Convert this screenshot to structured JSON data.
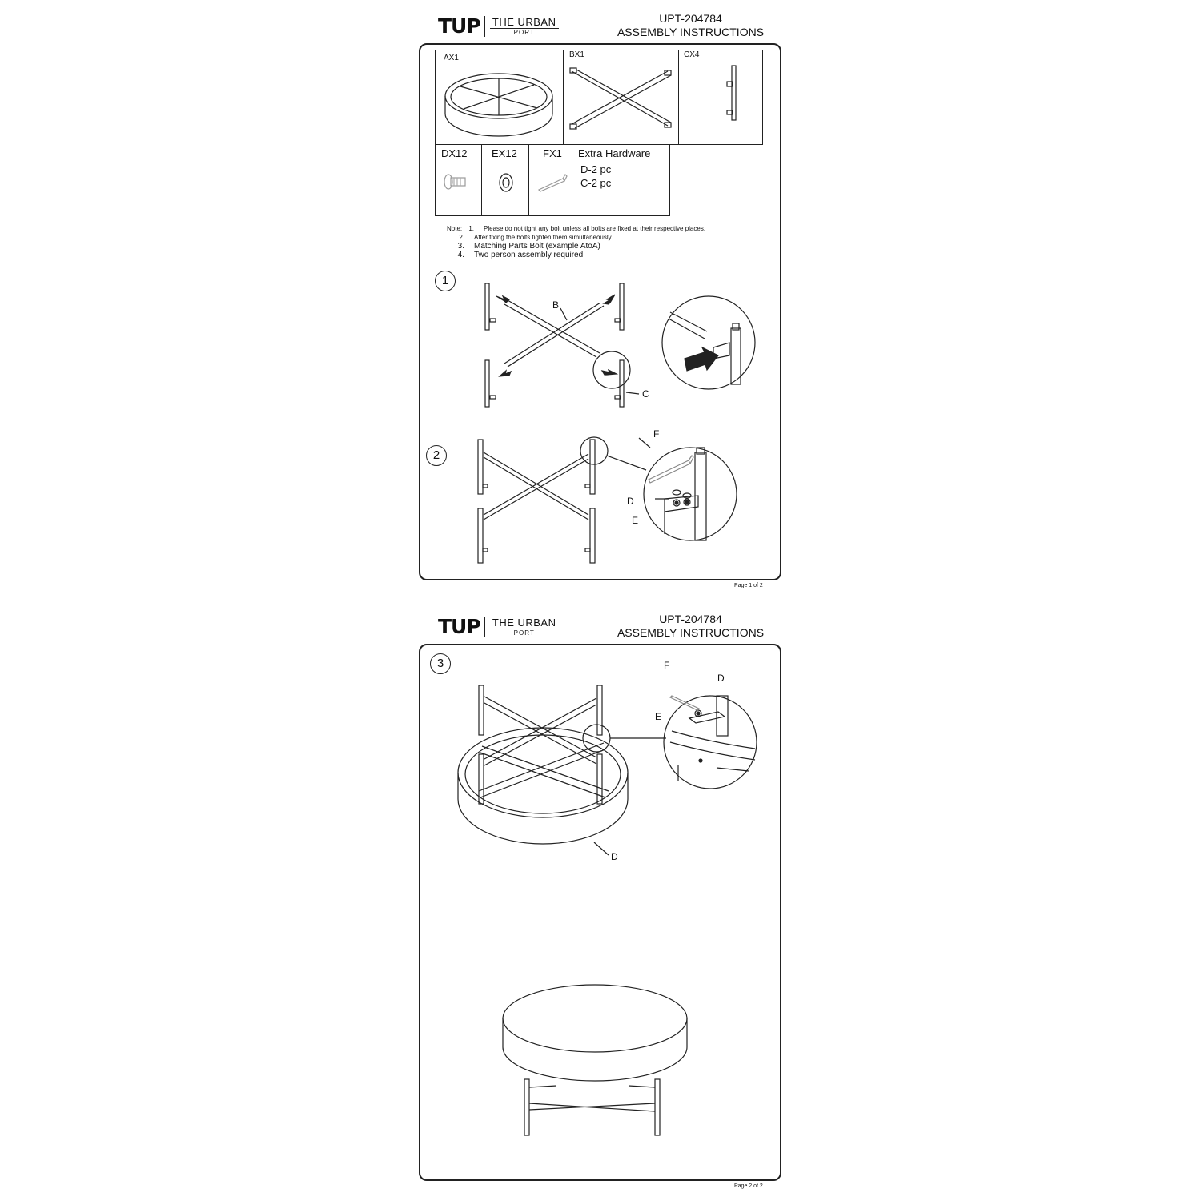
{
  "brand": {
    "mark": "TUP",
    "line1": "THE URBAN",
    "line2": "PORT"
  },
  "header": {
    "model": "UPT-204784",
    "title": "ASSEMBLY INSTRUCTIONS"
  },
  "parts": [
    {
      "label": "AX1"
    },
    {
      "label": "BX1"
    },
    {
      "label": "CX4"
    },
    {
      "label": "DX12"
    },
    {
      "label": "EX12"
    },
    {
      "label": "FX1"
    }
  ],
  "extra_hardware": {
    "title": "Extra Hardware",
    "line1": "D-2 pc",
    "line2": "C-2 pc"
  },
  "notes": {
    "label": "Note:",
    "items": [
      {
        "num": "1.",
        "text": "Please do not tight any bolt unless all bolts are fixed at their respective places."
      },
      {
        "num": "2.",
        "text": "After fixing the bolts tighten them simultaneously."
      },
      {
        "num": "3.",
        "text": "Matching Parts Bolt (example AtoA)"
      },
      {
        "num": "4.",
        "text": "Two person assembly required."
      }
    ]
  },
  "steps": [
    {
      "num": "1",
      "callouts": [
        "B",
        "C"
      ]
    },
    {
      "num": "2",
      "callouts": [
        "F",
        "D",
        "E"
      ]
    },
    {
      "num": "3",
      "callouts": [
        "F",
        "D",
        "E",
        "D"
      ]
    }
  ],
  "pages": {
    "page1": "Page 1 of 2",
    "page2": "Page 2 of 2"
  },
  "icons": [
    "bolt-icon",
    "washer-icon",
    "allen-key-icon",
    "assembly-arrow-icon"
  ]
}
